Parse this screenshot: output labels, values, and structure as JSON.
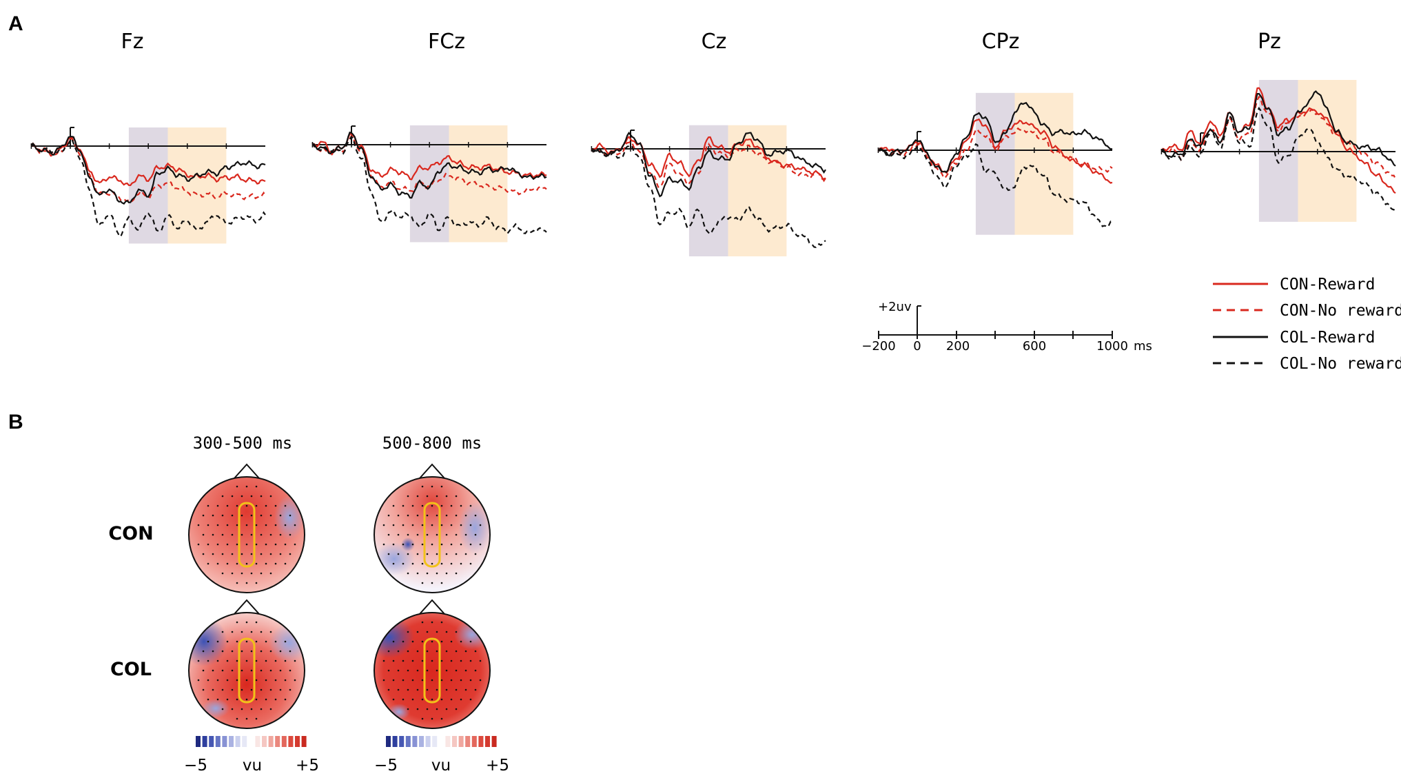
{
  "panels": {
    "a": "A",
    "b": "B"
  },
  "chart_data": {
    "type": "line",
    "time_unit": "ms",
    "x_range": [
      -200,
      1000
    ],
    "channels": [
      "Fz",
      "FCz",
      "Cz",
      "CPz",
      "Pz"
    ],
    "windows": [
      {
        "from": 300,
        "to": 500,
        "color": "#d9d2de"
      },
      {
        "from": 500,
        "to": 800,
        "color": "#fde6c8"
      }
    ],
    "series": [
      {
        "name": "CON-Reward",
        "color": "#d9281e",
        "dash": "solid"
      },
      {
        "name": "CON-No reward",
        "color": "#d9281e",
        "dash": "dashed"
      },
      {
        "name": "COL-Reward",
        "color": "#111111",
        "dash": "solid"
      },
      {
        "name": "COL-No reward",
        "color": "#111111",
        "dash": "dashed"
      }
    ],
    "waveforms": {
      "t": [
        -200,
        -150,
        -100,
        -50,
        0,
        50,
        100,
        150,
        200,
        250,
        300,
        350,
        400,
        450,
        500,
        550,
        600,
        650,
        700,
        750,
        800,
        850,
        900,
        950,
        1000
      ],
      "Fz": {
        "CON-Reward": [
          0,
          -0.4,
          -0.9,
          -0.5,
          1.2,
          -0.4,
          -3.6,
          -5.2,
          -4.3,
          -4.7,
          -5.6,
          -4.2,
          -4.6,
          -3.0,
          -2.8,
          -3.2,
          -4.0,
          -4.3,
          -4.1,
          -4.6,
          -4.4,
          -4.3,
          -4.7,
          -4.9,
          -4.9
        ],
        "CON-No reward": [
          0,
          -0.6,
          -1.1,
          -0.9,
          0.9,
          -0.9,
          -4.2,
          -6.8,
          -6.5,
          -7.1,
          -7.8,
          -6.6,
          -6.9,
          -5.6,
          -5.2,
          -5.8,
          -6.4,
          -6.8,
          -6.7,
          -7.0,
          -6.6,
          -6.8,
          -7.1,
          -7.0,
          -6.9
        ],
        "COL-Reward": [
          0,
          -0.5,
          -1.0,
          -0.3,
          1.4,
          -0.6,
          -4.5,
          -6.9,
          -6.0,
          -7.6,
          -8.0,
          -6.2,
          -6.8,
          -3.8,
          -3.2,
          -4.0,
          -4.6,
          -4.2,
          -3.6,
          -3.8,
          -3.0,
          -2.6,
          -2.3,
          -2.8,
          -2.6
        ],
        "COL-No reward": [
          0,
          -0.4,
          -0.6,
          -0.9,
          0.8,
          -1.5,
          -6.4,
          -11.2,
          -9.4,
          -12.4,
          -10.2,
          -11.6,
          -9.2,
          -12.0,
          -9.8,
          -11.4,
          -10.4,
          -11.8,
          -10.6,
          -9.6,
          -10.8,
          -10.2,
          -9.8,
          -10.4,
          -9.6
        ]
      },
      "FCz": {
        "CON-Reward": [
          0,
          0.3,
          -0.9,
          -0.4,
          1.3,
          -0.2,
          -3.4,
          -4.4,
          -3.5,
          -3.8,
          -4.6,
          -3.3,
          -3.2,
          -2.4,
          -1.8,
          -2.6,
          -3.1,
          -3.2,
          -3.0,
          -3.4,
          -3.8,
          -4.0,
          -4.3,
          -4.2,
          -4.2
        ],
        "CON-No reward": [
          0,
          -0.8,
          -1.0,
          -0.8,
          0.9,
          -0.9,
          -4.2,
          -6.0,
          -5.3,
          -6.1,
          -6.4,
          -5.4,
          -5.8,
          -4.8,
          -4.3,
          -4.8,
          -5.3,
          -5.6,
          -5.9,
          -6.0,
          -6.2,
          -6.7,
          -6.4,
          -6.1,
          -6.2
        ],
        "COL-Reward": [
          0,
          -0.5,
          -1.0,
          -0.4,
          1.5,
          -0.5,
          -4.3,
          -6.2,
          -5.6,
          -6.7,
          -7.2,
          -5.4,
          -5.9,
          -3.6,
          -2.8,
          -3.2,
          -3.7,
          -3.9,
          -3.4,
          -3.6,
          -3.2,
          -3.9,
          -4.6,
          -4.4,
          -4.5
        ],
        "COL-No reward": [
          0,
          -0.7,
          -0.6,
          -1.0,
          0.8,
          -1.8,
          -6.4,
          -10.8,
          -9.4,
          -10.0,
          -9.8,
          -11.6,
          -9.6,
          -11.8,
          -10.2,
          -11.4,
          -10.8,
          -11.2,
          -10.4,
          -11.6,
          -12.0,
          -11.4,
          -12.4,
          -11.8,
          -12.2
        ]
      },
      "Cz": {
        "CON-Reward": [
          0,
          0.4,
          -0.6,
          0.2,
          1.5,
          0.4,
          -2.2,
          -3.6,
          -0.9,
          -2.0,
          -3.5,
          -1.6,
          1.4,
          0.3,
          -0.4,
          0.6,
          1.2,
          0.4,
          -1.2,
          -2.0,
          -2.3,
          -2.6,
          -3.0,
          -3.4,
          -4.1
        ],
        "CON-No reward": [
          0,
          -0.5,
          -0.7,
          -0.5,
          1.0,
          -0.6,
          -3.4,
          -5.2,
          -2.0,
          -3.6,
          -4.7,
          -3.2,
          0.4,
          -0.6,
          -0.9,
          -0.3,
          0.2,
          -0.6,
          -1.6,
          -2.0,
          -2.6,
          -3.4,
          -3.8,
          -3.6,
          -4.1
        ],
        "COL-Reward": [
          0,
          -0.4,
          -0.7,
          0.1,
          2.1,
          0.4,
          -3.7,
          -6.3,
          -4.2,
          -4.6,
          -5.4,
          -2.6,
          -0.5,
          -1.4,
          -1.4,
          0.7,
          2.1,
          1.4,
          -0.8,
          -0.5,
          -0.2,
          -1.0,
          -1.9,
          -2.4,
          -2.9
        ],
        "COL-No reward": [
          0,
          -0.6,
          -0.8,
          -1.1,
          0.5,
          -1.5,
          -5.4,
          -10.4,
          -9.0,
          -8.6,
          -10.8,
          -8.4,
          -12.0,
          -10.2,
          -9.4,
          -10.0,
          -8.4,
          -9.6,
          -11.2,
          -11.0,
          -10.6,
          -11.8,
          -12.4,
          -13.8,
          -12.8
        ]
      },
      "CPz": {
        "CON-Reward": [
          0,
          0.3,
          -0.3,
          0.2,
          1.3,
          -0.5,
          -2.2,
          -3.0,
          -1.1,
          1.2,
          4.1,
          3.6,
          0.4,
          2.6,
          3.6,
          4.0,
          3.2,
          2.4,
          0.6,
          -0.6,
          -1.6,
          -2.0,
          -2.8,
          -3.6,
          -4.5
        ],
        "CON-No reward": [
          0,
          -0.3,
          -0.6,
          -0.4,
          0.9,
          -0.8,
          -2.8,
          -3.6,
          -1.6,
          -0.2,
          2.6,
          2.2,
          0.1,
          1.7,
          2.6,
          2.9,
          2.3,
          1.5,
          -0.2,
          -0.8,
          -1.2,
          -2.0,
          -2.4,
          -2.8,
          -2.5
        ],
        "COL-Reward": [
          0,
          -0.4,
          -0.2,
          0.1,
          1.6,
          -0.4,
          -2.5,
          -2.9,
          -0.4,
          1.6,
          4.9,
          4.7,
          1.2,
          2.2,
          5.2,
          6.8,
          5.3,
          3.4,
          2.4,
          2.6,
          2.2,
          2.6,
          2.0,
          1.2,
          0.2
        ],
        "COL-No reward": [
          0,
          -0.5,
          -0.6,
          -0.9,
          0.7,
          -1.2,
          -3.8,
          -5.0,
          -2.0,
          -0.9,
          0.6,
          -2.8,
          -3.2,
          -5.6,
          -5.0,
          -2.2,
          -2.4,
          -3.6,
          -6.0,
          -6.8,
          -7.0,
          -7.2,
          -8.8,
          -10.6,
          -10.1
        ]
      },
      "Pz": {
        "CON-Reward": [
          0,
          0.8,
          0.3,
          2.8,
          1.0,
          4.3,
          2.3,
          5.3,
          2.7,
          3.9,
          8.8,
          5.8,
          3.6,
          4.4,
          5.2,
          5.8,
          5.6,
          4.4,
          2.6,
          0.5,
          -0.6,
          -1.8,
          -3.2,
          -4.4,
          -5.8
        ],
        "CON-No reward": [
          0,
          0.4,
          -0.8,
          1.4,
          0.2,
          3.2,
          1.6,
          4.3,
          1.8,
          2.6,
          7.4,
          5.2,
          3.0,
          4.0,
          4.7,
          5.6,
          5.4,
          3.8,
          2.2,
          1.4,
          0.4,
          -0.6,
          -1.6,
          -2.6,
          -3.8
        ],
        "COL-Reward": [
          0,
          -0.6,
          -0.3,
          1.6,
          0.8,
          3.2,
          1.3,
          5.3,
          2.7,
          3.4,
          8.0,
          5.8,
          2.5,
          3.2,
          5.3,
          6.8,
          8.5,
          5.8,
          2.7,
          1.4,
          0.8,
          0.6,
          0.4,
          -0.6,
          -2.0
        ],
        "COL-No reward": [
          0,
          -0.8,
          -0.8,
          0.6,
          -0.6,
          2.8,
          0.6,
          4.6,
          1.4,
          0.8,
          5.8,
          3.4,
          -1.4,
          -0.6,
          1.8,
          3.2,
          1.6,
          -0.8,
          -2.6,
          -3.4,
          -3.8,
          -4.6,
          -5.8,
          -7.0,
          -8.6
        ]
      }
    },
    "scale_bar": {
      "amplitude_label": "+2uv",
      "tick_labels": [
        "−200",
        "0",
        "200",
        "600",
        "1000"
      ],
      "unit_label": "ms"
    }
  },
  "topo": {
    "windows": [
      "300-500 ms",
      "500-800 ms"
    ],
    "rows": [
      "CON",
      "COL"
    ],
    "colorbar": {
      "min_label": "−5",
      "mid_label": "vu",
      "max_label": "+5",
      "low_color": "#2b3a9a",
      "high_color": "#d9281e"
    }
  },
  "colors": {
    "highlight": "#f2c21a",
    "axis": "#111111"
  }
}
